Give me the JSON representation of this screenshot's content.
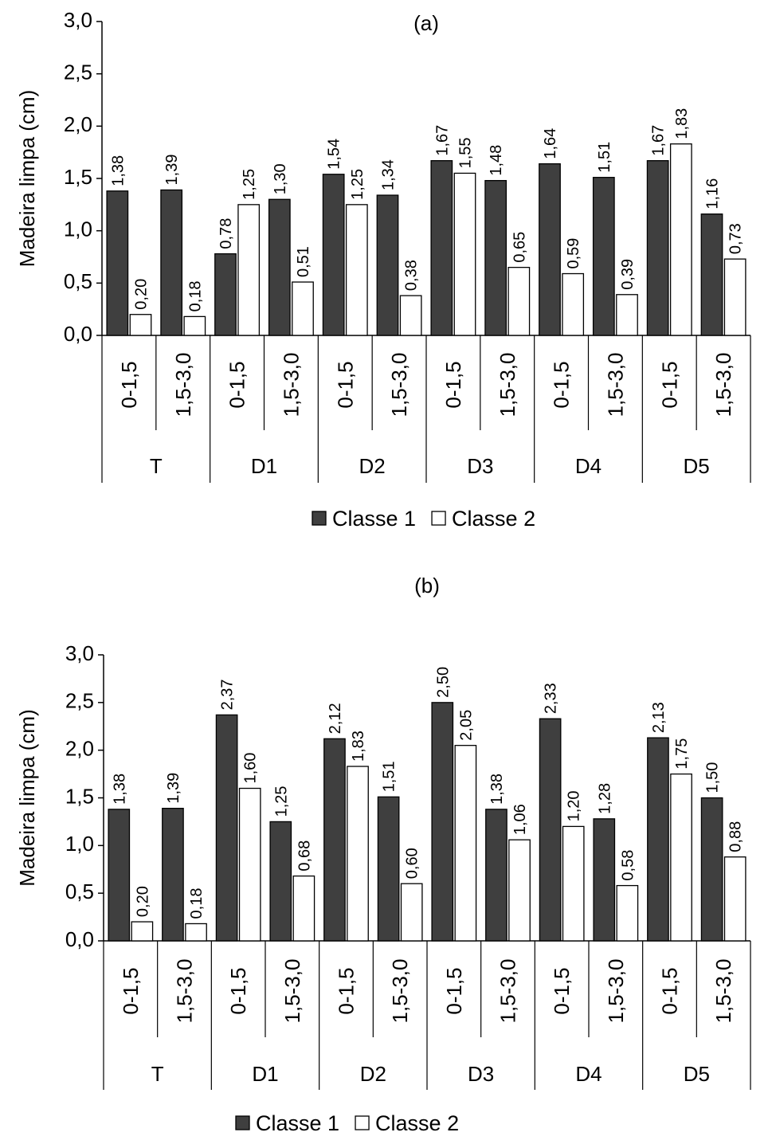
{
  "chart_data": [
    {
      "panel_label": "(a)",
      "type": "bar",
      "ylabel": "Madeira limpa (cm)",
      "ylim": [
        0,
        3.0
      ],
      "yticks": [
        "0,0",
        "0,5",
        "1,0",
        "1,5",
        "2,0",
        "2,5",
        "3,0"
      ],
      "groups": [
        "T",
        "D1",
        "D2",
        "D3",
        "D4",
        "D5"
      ],
      "subcategories": [
        "0-1,5",
        "1,5-3,0"
      ],
      "legend": {
        "placement": "bottom",
        "entries": [
          "Classe 1",
          "Classe 2"
        ]
      },
      "colors": {
        "Classe 1": "#3f3f3f",
        "Classe 2": "#ffffff"
      },
      "series": [
        {
          "name": "Classe 1",
          "values": [
            1.38,
            1.39,
            0.78,
            1.3,
            1.54,
            1.34,
            1.67,
            1.48,
            1.64,
            1.51,
            1.67,
            1.16
          ],
          "labels": [
            "1,38",
            "1,39",
            "0,78",
            "1,30",
            "1,54",
            "1,34",
            "1,67",
            "1,48",
            "1,64",
            "1,51",
            "1,67",
            "1,16"
          ]
        },
        {
          "name": "Classe 2",
          "values": [
            0.2,
            0.18,
            1.25,
            0.51,
            1.25,
            0.38,
            1.55,
            0.65,
            0.59,
            0.39,
            1.83,
            0.73
          ],
          "labels": [
            "0,20",
            "0,18",
            "1,25",
            "0,51",
            "1,25",
            "0,38",
            "1,55",
            "0,65",
            "0,59",
            "0,39",
            "1,83",
            "0,73"
          ]
        }
      ]
    },
    {
      "panel_label": "(b)",
      "type": "bar",
      "ylabel": "Madeira limpa (cm)",
      "ylim": [
        0,
        3.0
      ],
      "yticks": [
        "0,0",
        "0,5",
        "1,0",
        "1,5",
        "2,0",
        "2,5",
        "3,0"
      ],
      "groups": [
        "T",
        "D1",
        "D2",
        "D3",
        "D4",
        "D5"
      ],
      "subcategories": [
        "0-1,5",
        "1,5-3,0"
      ],
      "legend": {
        "placement": "bottom",
        "entries": [
          "Classe 1",
          "Classe 2"
        ]
      },
      "colors": {
        "Classe 1": "#3f3f3f",
        "Classe 2": "#ffffff"
      },
      "series": [
        {
          "name": "Classe 1",
          "values": [
            1.38,
            1.39,
            2.37,
            1.25,
            2.12,
            1.51,
            2.5,
            1.38,
            2.33,
            1.28,
            2.13,
            1.5
          ],
          "labels": [
            "1,38",
            "1,39",
            "2,37",
            "1,25",
            "2,12",
            "1,51",
            "2,50",
            "1,38",
            "2,33",
            "1,28",
            "2,13",
            "1,50"
          ]
        },
        {
          "name": "Classe 2",
          "values": [
            0.2,
            0.18,
            1.6,
            0.68,
            1.83,
            0.6,
            2.05,
            1.06,
            1.2,
            0.58,
            1.75,
            0.88
          ],
          "labels": [
            "0,20",
            "0,18",
            "1,60",
            "0,68",
            "1,83",
            "0,60",
            "2,05",
            "1,06",
            "1,20",
            "0,58",
            "1,75",
            "0,88"
          ]
        }
      ]
    }
  ]
}
